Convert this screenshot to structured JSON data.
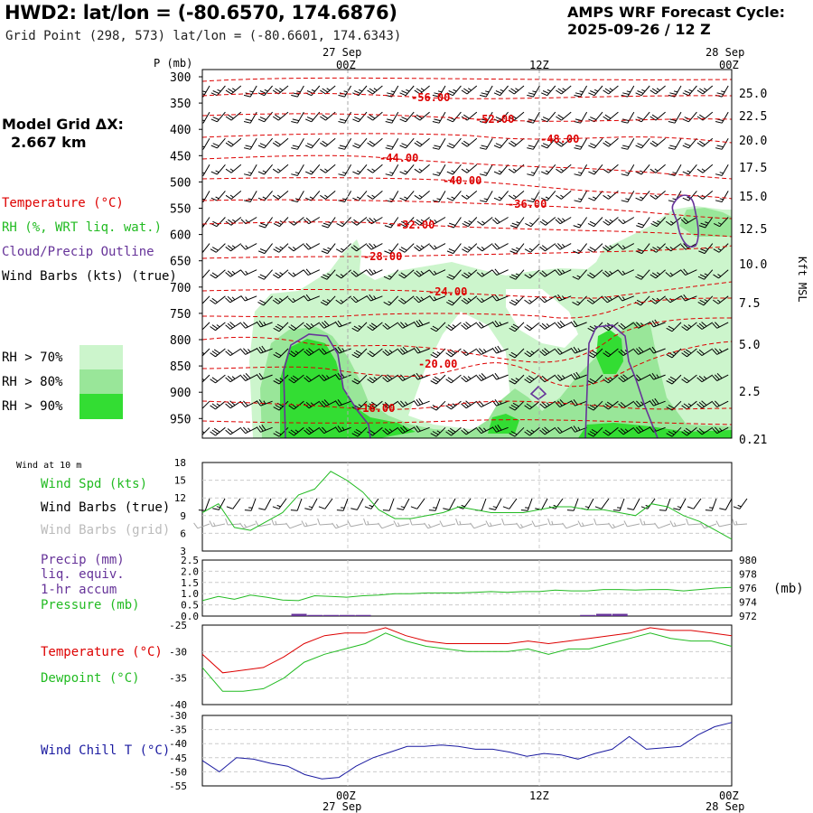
{
  "header": {
    "title": "HWD2:  lat/lon = (-80.6570, 174.6876)",
    "subtitle": "Grid Point (298, 573) lat/lon = (-80.6601, 174.6343)",
    "cycle_line1": "AMPS WRF Forecast Cycle:",
    "cycle_line2": "2025-09-26 / 12  Z",
    "grid_line1": "Model Grid ΔX:",
    "grid_line2": "2.667 km"
  },
  "time_axis": {
    "top_dates": [
      "27 Sep",
      "28 Sep"
    ],
    "ticks": [
      "00Z",
      "12Z",
      "00Z"
    ],
    "bottom_ticks": [
      "00Z",
      "12Z",
      "00Z"
    ],
    "bottom_dates": [
      "27 Sep",
      "28 Sep"
    ]
  },
  "colors": {
    "temperature": "#dd0000",
    "rh": "#22bb22",
    "cloud": "#663399",
    "wind": "#000000",
    "rh70": "#ccf5cc",
    "rh80": "#99e699",
    "rh90": "#33dd33",
    "pressure": "#22bb22",
    "windchill": "#1a1aa0",
    "grid_barb": "#aaaaaa"
  },
  "legend_main": {
    "temperature": "Temperature (°C)",
    "rh": "RH (%, WRT liq. wat.)",
    "cloud": "Cloud/Precip Outline",
    "wind": "Wind Barbs (kts) (true)",
    "rh70": "RH > 70%",
    "rh80": "RH > 80%",
    "rh90": "RH > 90%"
  },
  "legend_wind": {
    "heading": "Wind at 10 m",
    "speed": "Wind Spd (kts)",
    "barbs_true": "Wind Barbs (true)",
    "barbs_grid": "Wind Barbs (grid)"
  },
  "legend_precip": {
    "precip": "Precip (mm)",
    "liq": "liq. equiv.",
    "accum": "1-hr accum",
    "pressure": "Pressure (mb)",
    "unit": "(mb)"
  },
  "legend_temp": {
    "temperature": "Temperature (°C)",
    "dewpoint": "Dewpoint (°C)"
  },
  "legend_chill": {
    "windchill": "Wind Chill T (°C)"
  },
  "chart_data": [
    {
      "type": "heatmap",
      "name": "cross-section",
      "ylabel": "P (mb)",
      "y2label": "Kft MSL",
      "pressure_ticks": [
        300,
        350,
        400,
        450,
        500,
        550,
        600,
        650,
        700,
        750,
        800,
        850,
        900,
        950
      ],
      "height_ticks": [
        "25.0",
        "22.5",
        "20.0",
        "17.5",
        "15.0",
        "12.5",
        "10.0",
        "7.5",
        "5.0",
        "2.5",
        "0.21"
      ],
      "isotherm_labels": [
        "-56.00",
        "-52.00",
        "-48.00",
        "-44.00",
        "-40.00",
        "-36.00",
        "-32.00",
        "-28.00",
        "-24.00",
        "-20.00",
        "-16.00"
      ]
    },
    {
      "type": "line",
      "name": "wind-speed",
      "ylim": [
        3,
        18
      ],
      "yticks": [
        3,
        6,
        9,
        12,
        15,
        18
      ],
      "series": [
        {
          "name": "Wind Spd (kts)",
          "values": [
            9.5,
            11,
            7,
            6.5,
            8,
            9.5,
            12.5,
            13.5,
            16.5,
            15,
            13,
            10,
            8.5,
            8.5,
            9,
            9.5,
            10.5,
            10,
            9.5,
            9.5,
            9.5,
            10,
            10.5,
            10.5,
            10,
            10,
            9.5,
            9,
            11,
            10.5,
            9,
            8,
            6.5,
            5
          ]
        }
      ]
    },
    {
      "type": "line",
      "name": "precip-pressure",
      "ylim": [
        0.0,
        2.5
      ],
      "yticks": [
        "0.0",
        "0.5",
        "1.0",
        "1.5",
        "2.0",
        "2.5"
      ],
      "y2lim": [
        972,
        980
      ],
      "y2ticks": [
        972,
        974,
        976,
        978,
        980
      ],
      "series": [
        {
          "name": "Pressure (mb)",
          "values": [
            974.2,
            974.8,
            974.4,
            975.0,
            974.7,
            974.3,
            974.2,
            974.9,
            974.8,
            974.7,
            974.9,
            975.0,
            975.2,
            975.2,
            975.3,
            975.3,
            975.3,
            975.4,
            975.5,
            975.4,
            975.5,
            975.5,
            975.7,
            975.6,
            975.6,
            975.8,
            975.8,
            975.7,
            975.8,
            975.8,
            975.6,
            975.8,
            976.0,
            976.1
          ]
        },
        {
          "name": "Precip (mm)",
          "values": [
            0,
            0,
            0,
            0,
            0,
            0,
            0.1,
            0.05,
            0.05,
            0.05,
            0.05,
            0,
            0,
            0,
            0,
            0,
            0,
            0,
            0,
            0,
            0,
            0,
            0,
            0,
            0.05,
            0.1,
            0.1,
            0,
            0,
            0,
            0,
            0,
            0,
            0
          ]
        }
      ]
    },
    {
      "type": "line",
      "name": "temperature-dewpoint",
      "ylim": [
        -40,
        -25
      ],
      "yticks": [
        -25,
        -30,
        -35,
        -40
      ],
      "series": [
        {
          "name": "Temperature (°C)",
          "values": [
            -30.5,
            -34,
            -33.5,
            -33,
            -31,
            -28.5,
            -27,
            -26.5,
            -26.5,
            -25.5,
            -27,
            -28,
            -28.5,
            -28.5,
            -28.5,
            -28.5,
            -28,
            -28.5,
            -28,
            -27.5,
            -27,
            -26.5,
            -25.5,
            -26,
            -26,
            -26.5,
            -27
          ]
        },
        {
          "name": "Dewpoint (°C)",
          "values": [
            -33,
            -37.5,
            -37.5,
            -37,
            -35,
            -32,
            -30.5,
            -29.5,
            -28.5,
            -26.5,
            -28,
            -29,
            -29.5,
            -30,
            -30,
            -30,
            -29.5,
            -30.5,
            -29.5,
            -29.5,
            -28.5,
            -27.5,
            -26.5,
            -27.5,
            -28,
            -28,
            -29
          ]
        }
      ]
    },
    {
      "type": "line",
      "name": "wind-chill",
      "ylim": [
        -55,
        -30
      ],
      "yticks": [
        -30,
        -35,
        -40,
        -45,
        -50,
        -55
      ],
      "series": [
        {
          "name": "Wind Chill T (°C)",
          "values": [
            -46,
            -50,
            -45,
            -45.5,
            -47,
            -48,
            -51,
            -52.5,
            -52,
            -48,
            -45,
            -43,
            -41,
            -41,
            -40.5,
            -41,
            -42,
            -42,
            -43,
            -44.5,
            -43.5,
            -44,
            -45.5,
            -43.5,
            -42,
            -37.5,
            -42,
            -41.5,
            -41,
            -37,
            -34,
            -32.5
          ]
        }
      ]
    }
  ]
}
